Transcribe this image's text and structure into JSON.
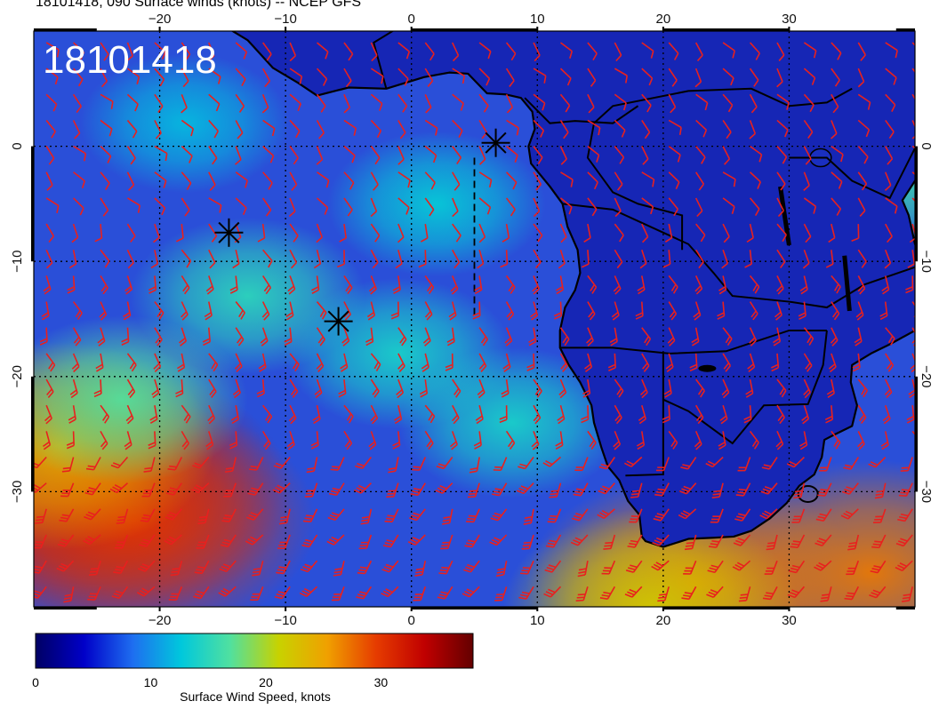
{
  "header": {
    "title": "18101418, 090 Surface winds (knots) -- NCEP GFS"
  },
  "map": {
    "stamp": "18101418",
    "lon_range": [
      -30,
      40
    ],
    "lat_range": [
      -40,
      10
    ],
    "lon_ticks": [
      {
        "value": -20,
        "label": "−20"
      },
      {
        "value": -10,
        "label": "−10"
      },
      {
        "value": 0,
        "label": "0"
      },
      {
        "value": 10,
        "label": "10"
      },
      {
        "value": 20,
        "label": "20"
      },
      {
        "value": 30,
        "label": "30"
      }
    ],
    "lat_ticks": [
      {
        "value": 0,
        "label": "0"
      },
      {
        "value": -10,
        "label": "−10"
      },
      {
        "value": -20,
        "label": "−20"
      },
      {
        "value": -30,
        "label": "−30"
      }
    ],
    "colors": {
      "ocean_base": "#2a4fd8",
      "land_base": "#1626b5",
      "coast": "#000000",
      "barb": "#e8201e",
      "grid": "#000000"
    },
    "markers": [
      {
        "name": "marker-a",
        "lon": -14.5,
        "lat": -7.5
      },
      {
        "name": "marker-b",
        "lon": -5.8,
        "lat": -15.2
      },
      {
        "name": "marker-c",
        "lon": 6.7,
        "lat": 0.3
      }
    ],
    "wind_hotspots": [
      {
        "lon": -25,
        "lat": -30,
        "speed": 33
      },
      {
        "lon": -22,
        "lat": -32.5,
        "speed": 30
      },
      {
        "lon": -28,
        "lat": -26,
        "speed": 24
      },
      {
        "lon": 22.5,
        "lat": -38,
        "speed": 27
      },
      {
        "lon": 36.5,
        "lat": -37,
        "speed": 27
      },
      {
        "lon": 19,
        "lat": -40,
        "speed": 22
      },
      {
        "lon": -13,
        "lat": -13,
        "speed": 15
      },
      {
        "lon": -1,
        "lat": -18,
        "speed": 14
      },
      {
        "lon": 8,
        "lat": -24,
        "speed": 14
      },
      {
        "lon": 39,
        "lat": -2,
        "speed": 16
      },
      {
        "lon": -23,
        "lat": -22,
        "speed": 17
      },
      {
        "lon": 2,
        "lat": -5,
        "speed": 13
      },
      {
        "lon": -18,
        "lat": 2,
        "speed": 12
      }
    ]
  },
  "colorbar": {
    "ticks": [
      {
        "value": 0,
        "label": "0"
      },
      {
        "value": 10,
        "label": "10"
      },
      {
        "value": 20,
        "label": "20"
      },
      {
        "value": 30,
        "label": "30"
      }
    ],
    "max": 38,
    "label": "Surface Wind Speed, knots",
    "stops": [
      "#000064",
      "#0000c8",
      "#1e6ef0",
      "#00c8dc",
      "#50e0a0",
      "#c8d200",
      "#f0a000",
      "#e63c00",
      "#c00000",
      "#640000"
    ]
  }
}
